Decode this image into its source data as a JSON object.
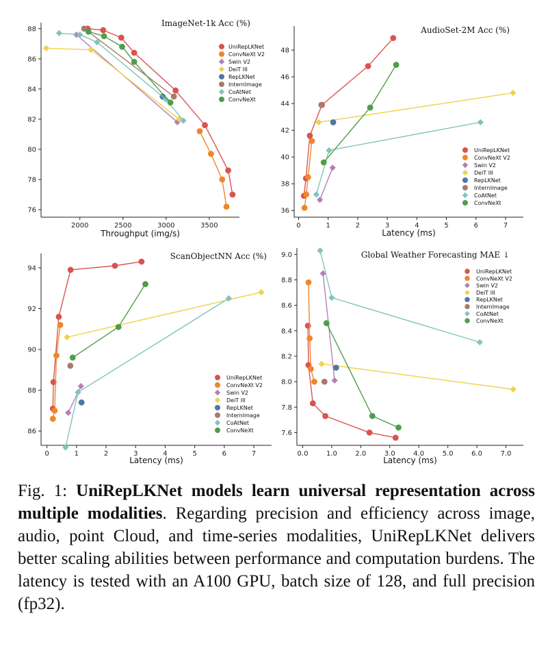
{
  "colors": {
    "UniRepLKNet": "#d9534f",
    "ConvNeXt V2": "#f0862a",
    "Swin V2": "#b57eb5",
    "DeiT III": "#efd24d",
    "RepLKNet": "#4f76a4",
    "InternImage": "#a47c6b",
    "CoAtNet": "#7fc4bd",
    "ConvNeXt": "#4f9e4a"
  },
  "markers": {
    "UniRepLKNet": "circle",
    "ConvNeXt V2": "circle",
    "Swin V2": "diamond",
    "DeiT III": "diamond",
    "RepLKNet": "circle",
    "InternImage": "circle",
    "CoAtNet": "diamond",
    "ConvNeXt": "circle"
  },
  "chart_data": [
    {
      "type": "line",
      "title": "ImageNet-1k Acc (%)",
      "xlabel": "Throughput (img/s)",
      "ylabel": "",
      "xlim": [
        1550,
        3850
      ],
      "ylim": [
        75.5,
        88.4
      ],
      "xticks": [
        2000,
        2500,
        3000,
        3500
      ],
      "yticks": [
        76,
        78,
        80,
        82,
        84,
        86,
        88
      ],
      "grid": false,
      "legend_position": "top-right",
      "series": [
        {
          "name": "UniRepLKNet",
          "x": [
            2090,
            2270,
            2480,
            2630,
            3110,
            3450,
            3720,
            3770
          ],
          "y": [
            88.0,
            87.9,
            87.4,
            86.4,
            83.9,
            81.6,
            78.6,
            77.0
          ]
        },
        {
          "name": "ConvNeXt V2",
          "x": [
            3390,
            3520,
            3650,
            3700
          ],
          "y": [
            81.2,
            79.7,
            78.0,
            76.2
          ]
        },
        {
          "name": "Swin V2",
          "x": [
            1960,
            3130
          ],
          "y": [
            87.6,
            81.8
          ]
        },
        {
          "name": "DeiT III",
          "x": [
            1610,
            2130,
            3150
          ],
          "y": [
            86.7,
            86.6,
            82.0
          ]
        },
        {
          "name": "RepLKNet",
          "x": [
            2960
          ],
          "y": [
            83.5
          ]
        },
        {
          "name": "InternImage",
          "x": [
            2050,
            3090
          ],
          "y": [
            88.0,
            83.5
          ]
        },
        {
          "name": "CoAtNet",
          "x": [
            1760,
            2000,
            2200,
            3000,
            3200
          ],
          "y": [
            87.7,
            87.6,
            87.1,
            83.3,
            81.9
          ]
        },
        {
          "name": "ConvNeXt",
          "x": [
            2100,
            2280,
            2490,
            2630,
            3050
          ],
          "y": [
            87.8,
            87.5,
            86.8,
            85.8,
            83.1
          ]
        }
      ]
    },
    {
      "type": "line",
      "title": "AudioSet-2M Acc (%)",
      "xlabel": "Latency (ms)",
      "ylabel": "",
      "xlim": [
        -0.15,
        7.6
      ],
      "ylim": [
        35.5,
        49.8
      ],
      "xticks": [
        0,
        1,
        2,
        3,
        4,
        5,
        6,
        7
      ],
      "yticks": [
        36,
        38,
        40,
        42,
        44,
        46,
        48
      ],
      "grid": false,
      "legend_position": "bottom-right",
      "series": [
        {
          "name": "UniRepLKNet",
          "x": [
            0.18,
            0.25,
            0.38,
            0.79,
            2.35,
            3.2
          ],
          "y": [
            37.1,
            38.4,
            41.6,
            43.9,
            46.8,
            48.9
          ]
        },
        {
          "name": "ConvNeXt V2",
          "x": [
            0.2,
            0.26,
            0.32,
            0.45
          ],
          "y": [
            36.2,
            37.2,
            38.5,
            41.2
          ]
        },
        {
          "name": "Swin V2",
          "x": [
            0.72,
            1.15
          ],
          "y": [
            36.8,
            39.2
          ]
        },
        {
          "name": "DeiT III",
          "x": [
            0.68,
            7.25
          ],
          "y": [
            42.6,
            44.8
          ]
        },
        {
          "name": "RepLKNet",
          "x": [
            1.17
          ],
          "y": [
            42.6
          ]
        },
        {
          "name": "InternImage",
          "x": [
            0.77
          ],
          "y": [
            43.9
          ]
        },
        {
          "name": "CoAtNet",
          "x": [
            0.6,
            1.03,
            6.15
          ],
          "y": [
            37.2,
            40.5,
            42.6
          ]
        },
        {
          "name": "ConvNeXt",
          "x": [
            0.85,
            2.42,
            3.3
          ],
          "y": [
            39.6,
            43.7,
            46.9
          ]
        }
      ]
    },
    {
      "type": "line",
      "title": "ScanObjectNN Acc (%)",
      "xlabel": "Latency (ms)",
      "ylabel": "",
      "xlim": [
        -0.2,
        7.6
      ],
      "ylim": [
        85.3,
        94.7
      ],
      "xticks": [
        0,
        1,
        2,
        3,
        4,
        5,
        6,
        7
      ],
      "yticks": [
        86,
        88,
        90,
        92,
        94
      ],
      "grid": false,
      "legend_position": "bottom-right",
      "series": [
        {
          "name": "UniRepLKNet",
          "x": [
            0.2,
            0.22,
            0.4,
            0.8,
            2.3,
            3.2
          ],
          "y": [
            87.1,
            88.4,
            91.6,
            93.9,
            94.1,
            94.3
          ]
        },
        {
          "name": "ConvNeXt V2",
          "x": [
            0.2,
            0.26,
            0.32,
            0.45
          ],
          "y": [
            86.6,
            87.0,
            89.7,
            91.2
          ]
        },
        {
          "name": "Swin V2",
          "x": [
            0.72,
            1.15
          ],
          "y": [
            86.9,
            88.2
          ]
        },
        {
          "name": "DeiT III",
          "x": [
            0.68,
            7.25
          ],
          "y": [
            90.6,
            92.8
          ]
        },
        {
          "name": "RepLKNet",
          "x": [
            1.17
          ],
          "y": [
            87.4
          ]
        },
        {
          "name": "InternImage",
          "x": [
            0.79
          ],
          "y": [
            89.2
          ]
        },
        {
          "name": "CoAtNet",
          "x": [
            0.63,
            1.05,
            6.15
          ],
          "y": [
            85.2,
            87.9,
            92.5
          ]
        },
        {
          "name": "ConvNeXt",
          "x": [
            0.87,
            2.42,
            3.33
          ],
          "y": [
            89.6,
            91.1,
            93.2
          ]
        }
      ]
    },
    {
      "type": "line",
      "title": "Global Weather Forecasting MAE ↓",
      "xlabel": "Latency (ms)",
      "ylabel": "",
      "xlim": [
        -0.2,
        7.6
      ],
      "ylim": [
        7.5,
        9.05
      ],
      "xticks": [
        0,
        1,
        2,
        3,
        4,
        5,
        6,
        7
      ],
      "yticks": [
        7.6,
        7.8,
        8.0,
        8.2,
        8.4,
        8.6,
        8.8,
        9.0
      ],
      "grid": false,
      "legend_position": "top-right",
      "series": [
        {
          "name": "UniRepLKNet",
          "x": [
            0.18,
            0.2,
            0.35,
            0.78,
            2.3,
            3.2
          ],
          "y": [
            8.44,
            8.13,
            7.83,
            7.73,
            7.6,
            7.56
          ]
        },
        {
          "name": "ConvNeXt V2",
          "x": [
            0.2,
            0.24,
            0.28,
            0.4
          ],
          "y": [
            8.78,
            8.34,
            8.1,
            8.0
          ]
        },
        {
          "name": "Swin V2",
          "x": [
            0.7,
            1.1
          ],
          "y": [
            8.85,
            8.01
          ]
        },
        {
          "name": "DeiT III",
          "x": [
            0.65,
            7.25
          ],
          "y": [
            8.14,
            7.94
          ]
        },
        {
          "name": "RepLKNet",
          "x": [
            1.15
          ],
          "y": [
            8.11
          ]
        },
        {
          "name": "InternImage",
          "x": [
            0.75
          ],
          "y": [
            8.0
          ]
        },
        {
          "name": "CoAtNet",
          "x": [
            0.6,
            1.0,
            6.1
          ],
          "y": [
            9.03,
            8.66,
            8.31
          ]
        },
        {
          "name": "ConvNeXt",
          "x": [
            0.82,
            2.4,
            3.3
          ],
          "y": [
            8.46,
            7.73,
            7.64
          ]
        }
      ]
    }
  ],
  "caption": {
    "fig_label": "Fig. 1:",
    "bold_text": "UniRepLKNet models learn universal representation across multiple modalities",
    "rest_text": ". Regarding precision and efficiency across image, audio, point Cloud, and time-series modalities, UniRepLKNet delivers better scaling abilities between performance and computation burdens. The latency is tested with an A100 GPU, batch size of 128, and full precision (fp32)."
  }
}
